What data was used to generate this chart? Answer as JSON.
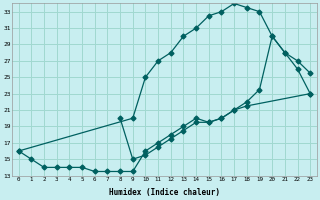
{
  "xlabel": "Humidex (Indice chaleur)",
  "bg_color": "#c8eef0",
  "line_color": "#006060",
  "grid_color": "#a0d8d0",
  "xlim": [
    -0.5,
    23.5
  ],
  "ylim": [
    13,
    34
  ],
  "xticks": [
    0,
    1,
    2,
    3,
    4,
    5,
    6,
    7,
    8,
    9,
    10,
    11,
    12,
    13,
    14,
    15,
    16,
    17,
    18,
    19,
    20,
    21,
    22,
    23
  ],
  "yticks": [
    13,
    15,
    17,
    19,
    21,
    23,
    25,
    27,
    29,
    31,
    33
  ],
  "curve_top_x": [
    0,
    9,
    10,
    11,
    12,
    13,
    14,
    15,
    16,
    17,
    18,
    19,
    20,
    21,
    22,
    23
  ],
  "curve_top_y": [
    16,
    20,
    25,
    27,
    28,
    30,
    31,
    32.5,
    33,
    34,
    33.5,
    33,
    30,
    28,
    27,
    25.5
  ],
  "curve_bot_x": [
    0,
    1,
    2,
    3,
    4,
    5,
    6,
    7,
    8,
    9,
    10,
    11,
    12,
    13,
    14,
    15,
    16,
    17,
    18,
    23
  ],
  "curve_bot_y": [
    16,
    15,
    14,
    14,
    14,
    14,
    13.5,
    13.5,
    13.5,
    13.5,
    16,
    17,
    18,
    19,
    20,
    19.5,
    20,
    21,
    21.5,
    23
  ],
  "curve_mid_x": [
    8,
    9,
    10,
    11,
    12,
    13,
    14,
    15,
    16,
    17,
    18,
    19,
    20,
    21,
    22,
    23
  ],
  "curve_mid_y": [
    20,
    15,
    15.5,
    16.5,
    17.5,
    18.5,
    19.5,
    19.5,
    20,
    21,
    22,
    23.5,
    30,
    28,
    26,
    23
  ]
}
